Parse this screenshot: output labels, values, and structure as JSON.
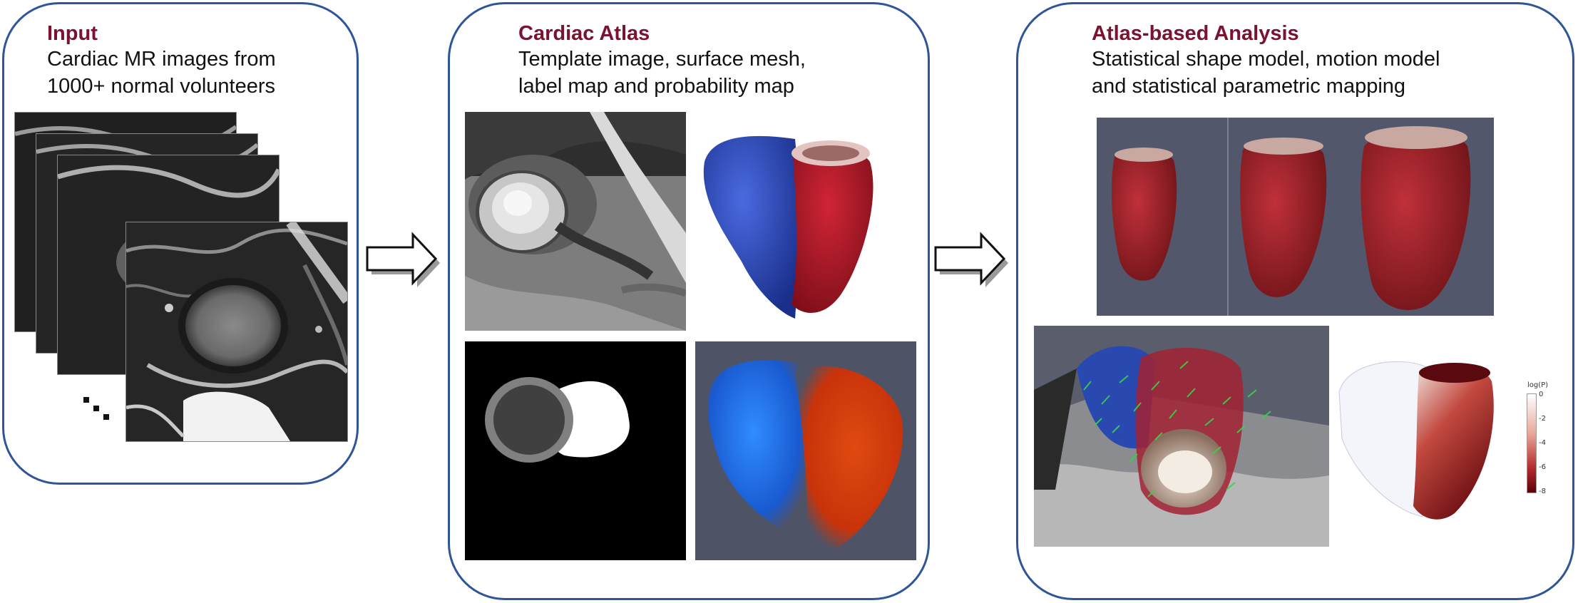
{
  "panels": {
    "input": {
      "title": "Input",
      "subtitle_lines": [
        "Cardiac MR images from",
        "1000+ normal volunteers"
      ]
    },
    "atlas": {
      "title": "Cardiac Atlas",
      "subtitle_lines": [
        "Template image, surface mesh,",
        "label map and probability map"
      ]
    },
    "analysis": {
      "title": "Atlas-based Analysis",
      "subtitle_lines": [
        "Statistical shape model, motion model",
        "and statistical parametric mapping"
      ]
    }
  },
  "colorbar": {
    "title": "log(P)",
    "ticks": [
      "0",
      "-2",
      "-4",
      "-6",
      "-8"
    ]
  },
  "colors": {
    "panel_border": "#2e5597",
    "title": "#7a1230",
    "lv_red": "#b01d2a",
    "rv_blue": "#2a47b8"
  },
  "icons": {
    "flow_arrow": "right-block-arrow",
    "ellipsis": "diagonal-dots"
  }
}
